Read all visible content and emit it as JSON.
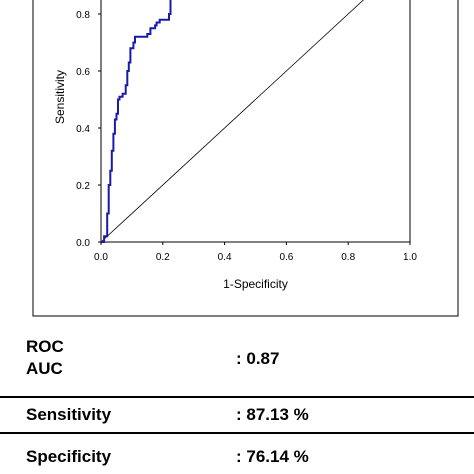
{
  "chart_data": {
    "type": "line",
    "xlabel": "1-Specificity",
    "ylabel": "Sensitivity",
    "xlim": [
      0.0,
      1.0
    ],
    "ylim": [
      0.0,
      0.85
    ],
    "x_ticks": [
      "0.0",
      "0.2",
      "0.4",
      "0.6",
      "0.8",
      "1.0"
    ],
    "y_ticks": [
      "0.0",
      "0.2",
      "0.4",
      "0.6",
      "0.8"
    ],
    "roc_color": "#1a1aa8",
    "reference_line": {
      "from": [
        0.0,
        0.0
      ],
      "to": [
        0.85,
        0.85
      ]
    },
    "roc_curve": {
      "x": [
        0.0,
        0.01,
        0.01,
        0.02,
        0.02,
        0.025,
        0.025,
        0.03,
        0.03,
        0.035,
        0.035,
        0.04,
        0.04,
        0.045,
        0.045,
        0.05,
        0.05,
        0.055,
        0.055,
        0.06,
        0.06,
        0.07,
        0.07,
        0.08,
        0.08,
        0.085,
        0.085,
        0.09,
        0.09,
        0.095,
        0.095,
        0.105,
        0.105,
        0.11,
        0.11,
        0.125,
        0.125,
        0.15,
        0.15,
        0.16,
        0.16,
        0.175,
        0.175,
        0.18,
        0.18,
        0.19,
        0.19,
        0.22,
        0.22,
        0.225,
        0.225
      ],
      "y": [
        0.0,
        0.0,
        0.02,
        0.02,
        0.1,
        0.1,
        0.2,
        0.2,
        0.25,
        0.25,
        0.32,
        0.32,
        0.38,
        0.38,
        0.43,
        0.43,
        0.45,
        0.45,
        0.5,
        0.5,
        0.51,
        0.51,
        0.52,
        0.52,
        0.55,
        0.55,
        0.6,
        0.6,
        0.63,
        0.63,
        0.68,
        0.68,
        0.7,
        0.7,
        0.72,
        0.72,
        0.72,
        0.72,
        0.73,
        0.73,
        0.75,
        0.75,
        0.76,
        0.76,
        0.77,
        0.77,
        0.78,
        0.78,
        0.8,
        0.8,
        0.85
      ]
    }
  },
  "stats": [
    {
      "label_lines": [
        "ROC",
        "AUC"
      ],
      "value": ": 0.87"
    },
    {
      "label_lines": [
        "Sensitivity"
      ],
      "value": ": 87.13 %"
    },
    {
      "label_lines": [
        "Specificity"
      ],
      "value": ": 76.14 %"
    }
  ]
}
